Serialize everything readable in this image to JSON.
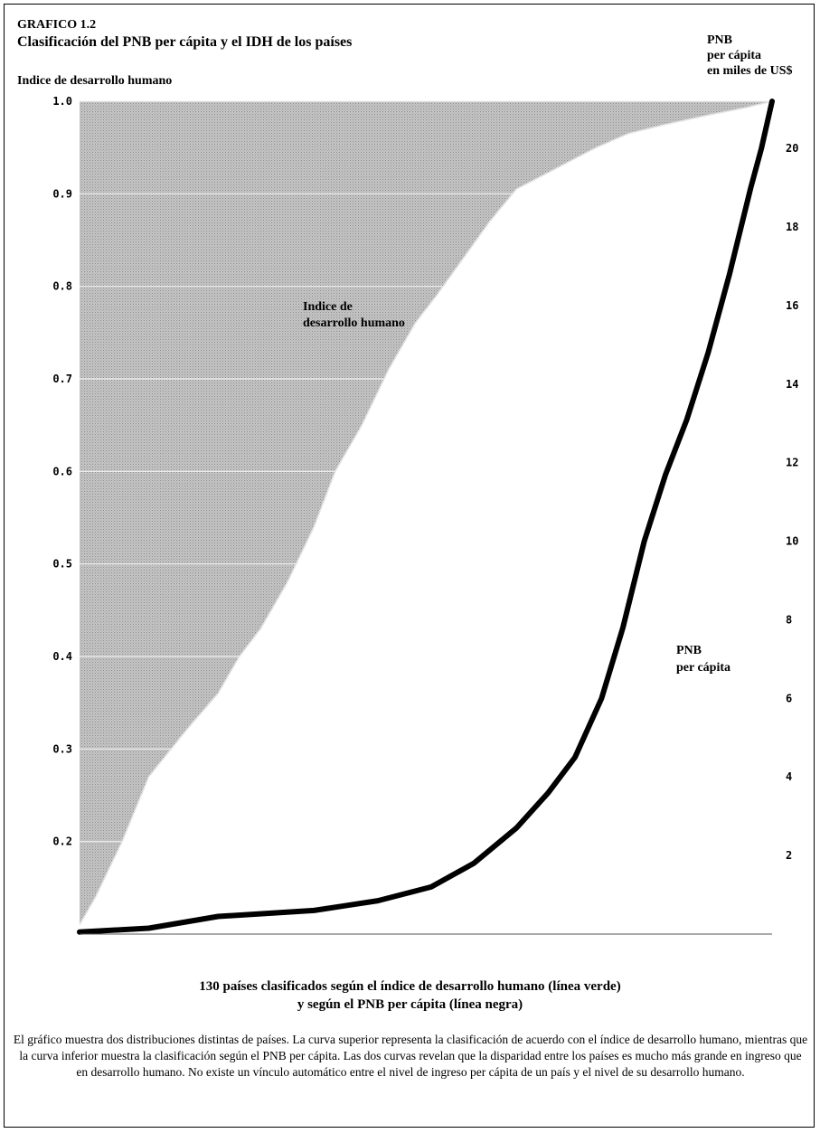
{
  "figure_label": "GRAFICO 1.2",
  "chart_data": {
    "type": "area",
    "title": "Clasificación del PNB per cápita y el IDH de los países",
    "ylabel_left": "Indice de desarrollo humano",
    "ylabel_right": [
      "PNB",
      "per cápita",
      "en miles de US$"
    ],
    "ylim_left": [
      0.1,
      1.0
    ],
    "ylim_right": [
      0,
      21.2
    ],
    "y_ticks_left": [
      "1.0",
      "0.9",
      "0.8",
      "0.7",
      "0.6",
      "0.5",
      "0.4",
      "0.3",
      "0.2"
    ],
    "y_ticks_right": [
      "20",
      "18",
      "16",
      "14",
      "12",
      "10",
      "8",
      "6",
      "4",
      "2"
    ],
    "x": {
      "count": 130,
      "label": "130 países clasificados"
    },
    "grid": true,
    "series": [
      {
        "name": "Indice de desarrollo humano",
        "axis": "left",
        "points": [
          [
            0,
            0.11
          ],
          [
            3,
            0.14
          ],
          [
            8,
            0.2
          ],
          [
            13,
            0.27
          ],
          [
            20,
            0.32
          ],
          [
            26,
            0.36
          ],
          [
            30,
            0.4
          ],
          [
            34,
            0.43
          ],
          [
            39,
            0.48
          ],
          [
            44,
            0.54
          ],
          [
            48,
            0.6
          ],
          [
            53,
            0.65
          ],
          [
            58,
            0.71
          ],
          [
            63,
            0.76
          ],
          [
            67,
            0.79
          ],
          [
            72,
            0.83
          ],
          [
            77,
            0.87
          ],
          [
            82,
            0.905
          ],
          [
            87,
            0.92
          ],
          [
            92,
            0.935
          ],
          [
            97,
            0.95
          ],
          [
            103,
            0.965
          ],
          [
            110,
            0.975
          ],
          [
            118,
            0.985
          ],
          [
            125,
            0.993
          ],
          [
            130,
            1.0
          ]
        ]
      },
      {
        "name": "PNB per cápita",
        "axis": "right",
        "points": [
          [
            0,
            0.05
          ],
          [
            13,
            0.15
          ],
          [
            26,
            0.45
          ],
          [
            44,
            0.6
          ],
          [
            56,
            0.85
          ],
          [
            66,
            1.2
          ],
          [
            74,
            1.8
          ],
          [
            82,
            2.7
          ],
          [
            88,
            3.6
          ],
          [
            93,
            4.5
          ],
          [
            98,
            6.0
          ],
          [
            102,
            7.8
          ],
          [
            106,
            10.0
          ],
          [
            110,
            11.7
          ],
          [
            114,
            13.1
          ],
          [
            118,
            14.8
          ],
          [
            122,
            16.8
          ],
          [
            126,
            19.0
          ],
          [
            128,
            20.0
          ],
          [
            130,
            21.2
          ]
        ]
      }
    ],
    "annotations": [
      {
        "lines": [
          "Indice de",
          "desarrollo humano"
        ],
        "series": "Indice de desarrollo humano"
      },
      {
        "lines": [
          "PNB",
          "per cápita"
        ],
        "series": "PNB per cápita"
      }
    ]
  },
  "caption": [
    "130 países clasificados según el índice de desarrollo humano (línea verde)",
    "y según el PNB per cápita (línea negra)"
  ],
  "note": "El gráfico muestra dos distribuciones distintas de países. La curva superior representa la clasificación de acuerdo con el índice de desarrollo humano, mientras que la curva inferior muestra la clasificación según el PNB per cápita. Las dos curvas revelan que la disparidad entre los países es mucho más grande en ingreso que en desarrollo humano. No existe un vínculo automático entre el nivel de ingreso per cápita de un país y el nivel de su desarrollo humano."
}
